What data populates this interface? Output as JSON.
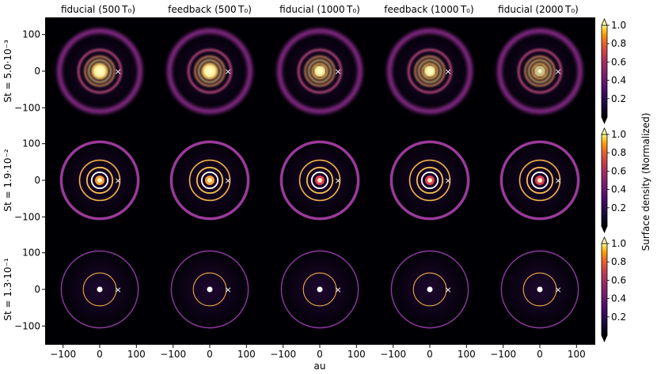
{
  "chart_data": {
    "type": "heatmap",
    "columns": [
      {
        "label": "fiducial (500 T₀)"
      },
      {
        "label": "feedback (500 T₀)"
      },
      {
        "label": "fiducial (1000 T₀)"
      },
      {
        "label": "feedback (1000 T₀)"
      },
      {
        "label": "fiducial (2000 T₀)"
      }
    ],
    "rows": [
      {
        "label": "St = 5.0·10⁻³"
      },
      {
        "label": "St = 1.9·10⁻²"
      },
      {
        "label": "St = 1.3·10⁻¹"
      }
    ],
    "xlabel": "au",
    "x_ticks": [
      "−100",
      "0",
      "100"
    ],
    "y_ticks": [
      "100",
      "0",
      "−100"
    ],
    "xlim": [
      -150,
      150
    ],
    "ylim": [
      -150,
      150
    ],
    "colorbar": {
      "label": "Surface density (Normalized)",
      "ticks": [
        "0.2",
        "0.4",
        "0.6",
        "0.8",
        "1.0"
      ],
      "colormap": "inferno"
    },
    "planet_marker": {
      "symbol": "×",
      "x_au": 50,
      "y_au": 0
    },
    "rings_au": {
      "row1": [
        5,
        12,
        20,
        30,
        40,
        58,
        110
      ],
      "row2": [
        10,
        22,
        35,
        55,
        105
      ],
      "row3": [
        10,
        45,
        105
      ]
    }
  }
}
